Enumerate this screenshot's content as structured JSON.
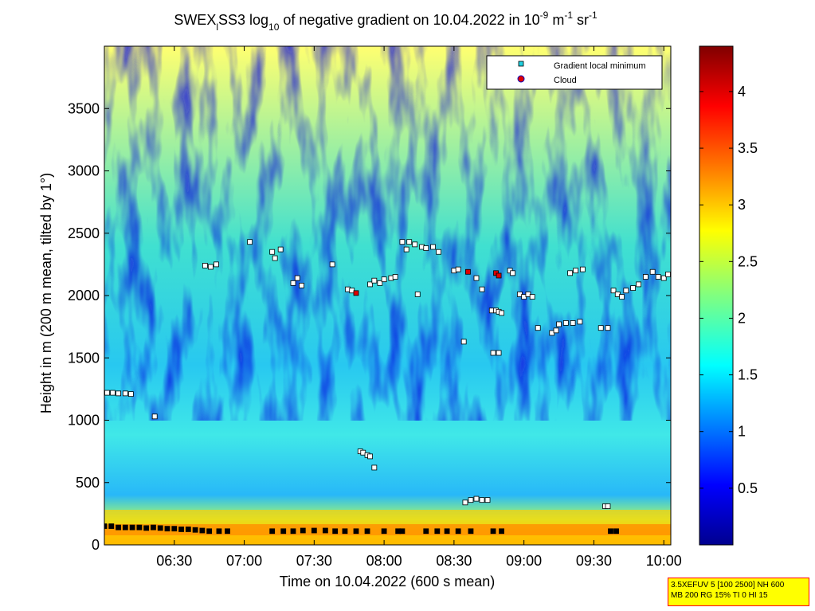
{
  "title": {
    "part1": "SWEX",
    "sub1": "l",
    "part2": "SS3 log",
    "sub2": "10",
    "part3": " of negative gradient on 10.04.2022 in 10",
    "sup1": "-9",
    "part4": " m",
    "sup2": "-1",
    "part5": " sr",
    "sup3": "-1"
  },
  "info_box": {
    "line1": "3.5XEFUV 5 [100 2500] NH 600",
    "line2": "MB 200 RG 15% TI 0 HI 15"
  },
  "colors": {
    "cmap": [
      "#00008f",
      "#0000ff",
      "#00a0ff",
      "#00ffff",
      "#80ff80",
      "#ffff00",
      "#ff8000",
      "#ff0000",
      "#800000"
    ],
    "minimum_marker_fill": "#20d0e0",
    "cloud_marker_fill": "#e00000"
  },
  "chart_data": {
    "type": "heatmap",
    "xlabel": "Time on 10.04.2022 (600 s mean)",
    "ylabel": "Height in m (200 m mean, tilted by 1°)",
    "x_ticks": [
      "06:30",
      "07:00",
      "07:30",
      "08:00",
      "08:30",
      "09:00",
      "09:30",
      "10:00"
    ],
    "y_ticks": [
      "0",
      "500",
      "1000",
      "1500",
      "2000",
      "2500",
      "3000",
      "3500"
    ],
    "x_tick_values_h": [
      6.5,
      7.0,
      7.5,
      8.0,
      8.5,
      9.0,
      9.5,
      10.0
    ],
    "y_tick_values": [
      0,
      500,
      1000,
      1500,
      2000,
      2500,
      3000,
      3500
    ],
    "xlim_h": [
      6.0,
      10.05
    ],
    "ylim": [
      0,
      4000
    ],
    "colorbar": {
      "ticks": [
        "0.5",
        "1",
        "1.5",
        "2",
        "2.5",
        "3",
        "3.5",
        "4"
      ],
      "tick_values": [
        0.5,
        1,
        1.5,
        2,
        2.5,
        3,
        3.5,
        4
      ],
      "range": [
        0,
        4.4
      ]
    },
    "legend": {
      "placement": "top-right",
      "entries": [
        {
          "label": "Gradient local minimum",
          "marker": "square"
        },
        {
          "label": "Cloud",
          "marker": "circle"
        }
      ]
    },
    "gradient_minima": [
      [
        6.02,
        1220
      ],
      [
        6.06,
        1220
      ],
      [
        6.1,
        1215
      ],
      [
        6.15,
        1215
      ],
      [
        6.19,
        1210
      ],
      [
        6.36,
        1030
      ],
      [
        6.72,
        2240
      ],
      [
        6.76,
        2230
      ],
      [
        6.8,
        2250
      ],
      [
        7.04,
        2430
      ],
      [
        7.2,
        2350
      ],
      [
        7.22,
        2300
      ],
      [
        7.26,
        2370
      ],
      [
        7.35,
        2100
      ],
      [
        7.38,
        2140
      ],
      [
        7.41,
        2080
      ],
      [
        7.63,
        2250
      ],
      [
        7.74,
        2050
      ],
      [
        7.77,
        2040
      ],
      [
        7.9,
        2090
      ],
      [
        7.93,
        2120
      ],
      [
        7.97,
        2100
      ],
      [
        8.0,
        2130
      ],
      [
        8.05,
        2140
      ],
      [
        8.08,
        2150
      ],
      [
        8.13,
        2430
      ],
      [
        8.16,
        2370
      ],
      [
        8.18,
        2430
      ],
      [
        8.22,
        2410
      ],
      [
        8.27,
        2390
      ],
      [
        8.3,
        2380
      ],
      [
        8.35,
        2390
      ],
      [
        8.39,
        2350
      ],
      [
        8.24,
        2010
      ],
      [
        8.5,
        2200
      ],
      [
        8.53,
        2210
      ],
      [
        8.57,
        1630
      ],
      [
        8.66,
        2140
      ],
      [
        8.7,
        2050
      ],
      [
        8.77,
        1880
      ],
      [
        8.8,
        1880
      ],
      [
        8.82,
        1870
      ],
      [
        8.84,
        1860
      ],
      [
        8.78,
        1540
      ],
      [
        8.82,
        1540
      ],
      [
        8.9,
        2200
      ],
      [
        8.92,
        2180
      ],
      [
        8.97,
        2010
      ],
      [
        9.0,
        1990
      ],
      [
        9.03,
        2010
      ],
      [
        9.06,
        1990
      ],
      [
        9.1,
        1740
      ],
      [
        9.2,
        1700
      ],
      [
        9.23,
        1720
      ],
      [
        9.25,
        1770
      ],
      [
        9.3,
        1780
      ],
      [
        9.35,
        1780
      ],
      [
        9.4,
        1790
      ],
      [
        9.33,
        2180
      ],
      [
        9.37,
        2200
      ],
      [
        9.42,
        2210
      ],
      [
        9.55,
        1740
      ],
      [
        9.6,
        1740
      ],
      [
        9.64,
        2040
      ],
      [
        9.67,
        2010
      ],
      [
        9.7,
        1990
      ],
      [
        9.73,
        2040
      ],
      [
        9.78,
        2060
      ],
      [
        9.82,
        2090
      ],
      [
        9.87,
        2150
      ],
      [
        9.92,
        2190
      ],
      [
        9.96,
        2150
      ],
      [
        10.0,
        2140
      ],
      [
        10.03,
        2170
      ],
      [
        7.83,
        750
      ],
      [
        7.85,
        740
      ],
      [
        7.88,
        720
      ],
      [
        7.9,
        710
      ],
      [
        7.93,
        620
      ],
      [
        8.58,
        340
      ],
      [
        8.62,
        360
      ],
      [
        8.66,
        370
      ],
      [
        8.7,
        360
      ],
      [
        8.74,
        360
      ],
      [
        9.58,
        310
      ],
      [
        9.6,
        310
      ],
      [
        6.0,
        150
      ],
      [
        6.05,
        150
      ],
      [
        6.1,
        140
      ],
      [
        6.15,
        140
      ],
      [
        6.2,
        140
      ],
      [
        6.25,
        140
      ],
      [
        6.3,
        135
      ],
      [
        6.35,
        140
      ],
      [
        6.4,
        135
      ],
      [
        6.45,
        130
      ],
      [
        6.5,
        130
      ],
      [
        6.55,
        125
      ],
      [
        6.6,
        125
      ],
      [
        6.65,
        120
      ],
      [
        6.7,
        115
      ],
      [
        6.75,
        110
      ],
      [
        6.82,
        110
      ],
      [
        6.88,
        110
      ],
      [
        7.2,
        110
      ],
      [
        7.28,
        110
      ],
      [
        7.35,
        110
      ],
      [
        7.42,
        115
      ],
      [
        7.5,
        115
      ],
      [
        7.58,
        115
      ],
      [
        7.65,
        110
      ],
      [
        7.72,
        110
      ],
      [
        7.8,
        110
      ],
      [
        7.88,
        110
      ],
      [
        8.0,
        110
      ],
      [
        8.1,
        110
      ],
      [
        8.13,
        110
      ],
      [
        8.3,
        110
      ],
      [
        8.38,
        110
      ],
      [
        8.45,
        110
      ],
      [
        8.53,
        110
      ],
      [
        8.62,
        110
      ],
      [
        8.78,
        110
      ],
      [
        8.84,
        110
      ],
      [
        9.62,
        110
      ],
      [
        9.66,
        110
      ]
    ],
    "cloud_points": [
      [
        7.8,
        2020
      ],
      [
        8.6,
        2190
      ],
      [
        8.8,
        2180
      ],
      [
        8.82,
        2160
      ]
    ]
  }
}
